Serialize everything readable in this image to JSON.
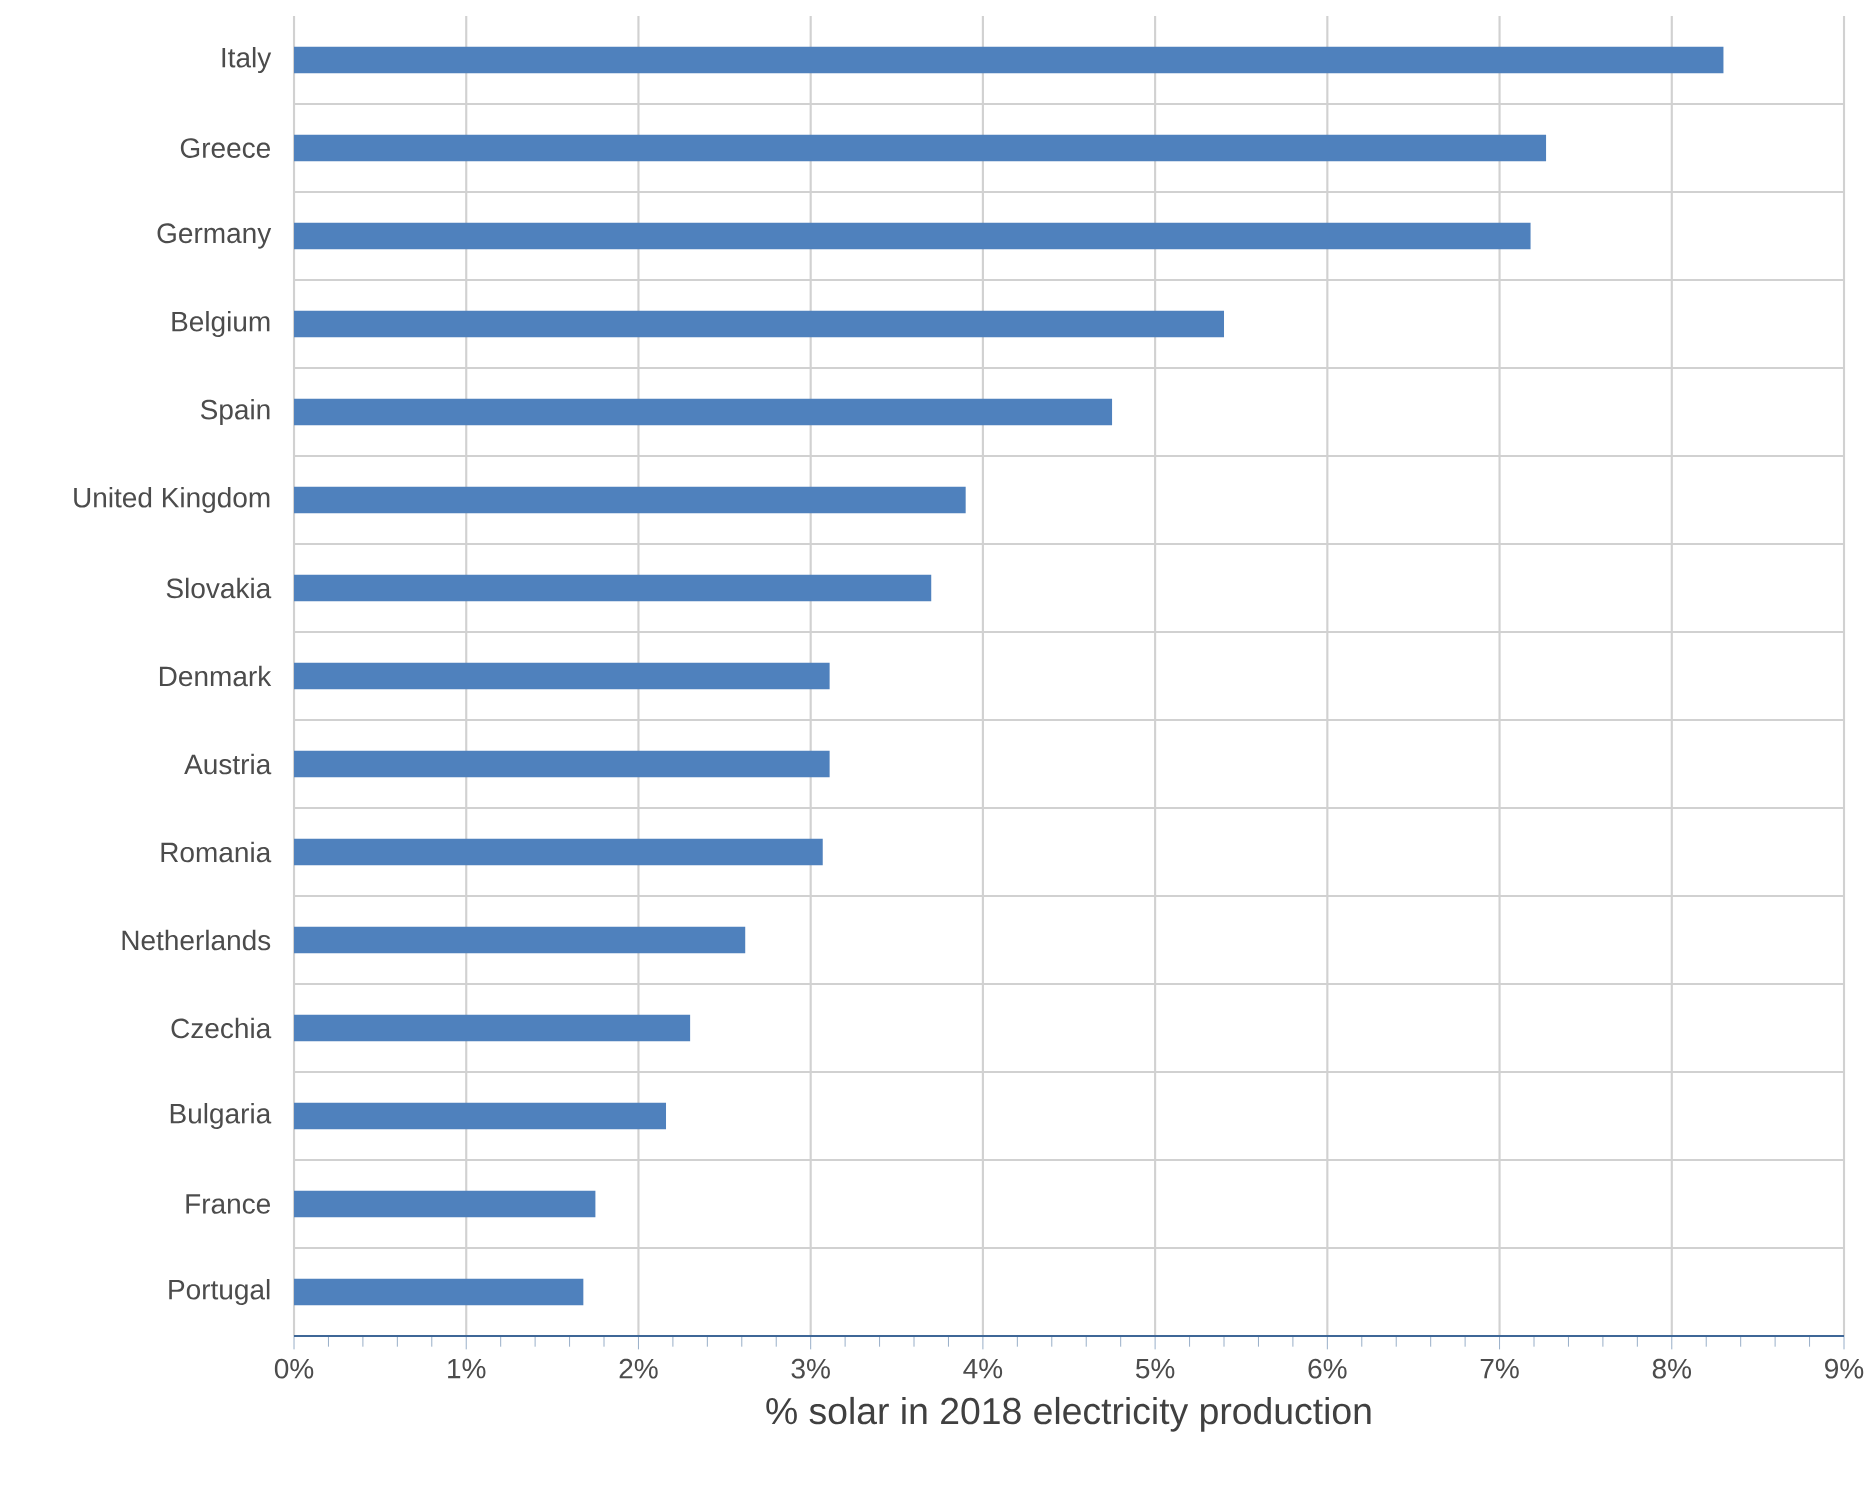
{
  "chart_data": {
    "type": "bar",
    "orientation": "horizontal",
    "xlabel": "% solar in 2018 electricity production",
    "categories": [
      "Italy",
      "Greece",
      "Germany",
      "Belgium",
      "Spain",
      "United Kingdom",
      "Slovakia",
      "Denmark",
      "Austria",
      "Romania",
      "Netherlands",
      "Czechia",
      "Bulgaria",
      "France",
      "Portugal"
    ],
    "values": [
      8.3,
      7.27,
      7.18,
      5.4,
      4.75,
      3.9,
      3.7,
      3.11,
      3.11,
      3.07,
      2.62,
      2.3,
      2.16,
      1.75,
      1.68
    ],
    "color": "#4f81bd",
    "xlim": [
      0,
      9
    ],
    "xticks": [
      {
        "value": 0,
        "label": "0%"
      },
      {
        "value": 1,
        "label": "1%"
      },
      {
        "value": 2,
        "label": "2%"
      },
      {
        "value": 3,
        "label": "3%"
      },
      {
        "value": 4,
        "label": "4%"
      },
      {
        "value": 5,
        "label": "5%"
      },
      {
        "value": 6,
        "label": "6%"
      },
      {
        "value": 7,
        "label": "7%"
      },
      {
        "value": 8,
        "label": "8%"
      },
      {
        "value": 9,
        "label": "9%"
      }
    ],
    "grid": true
  }
}
